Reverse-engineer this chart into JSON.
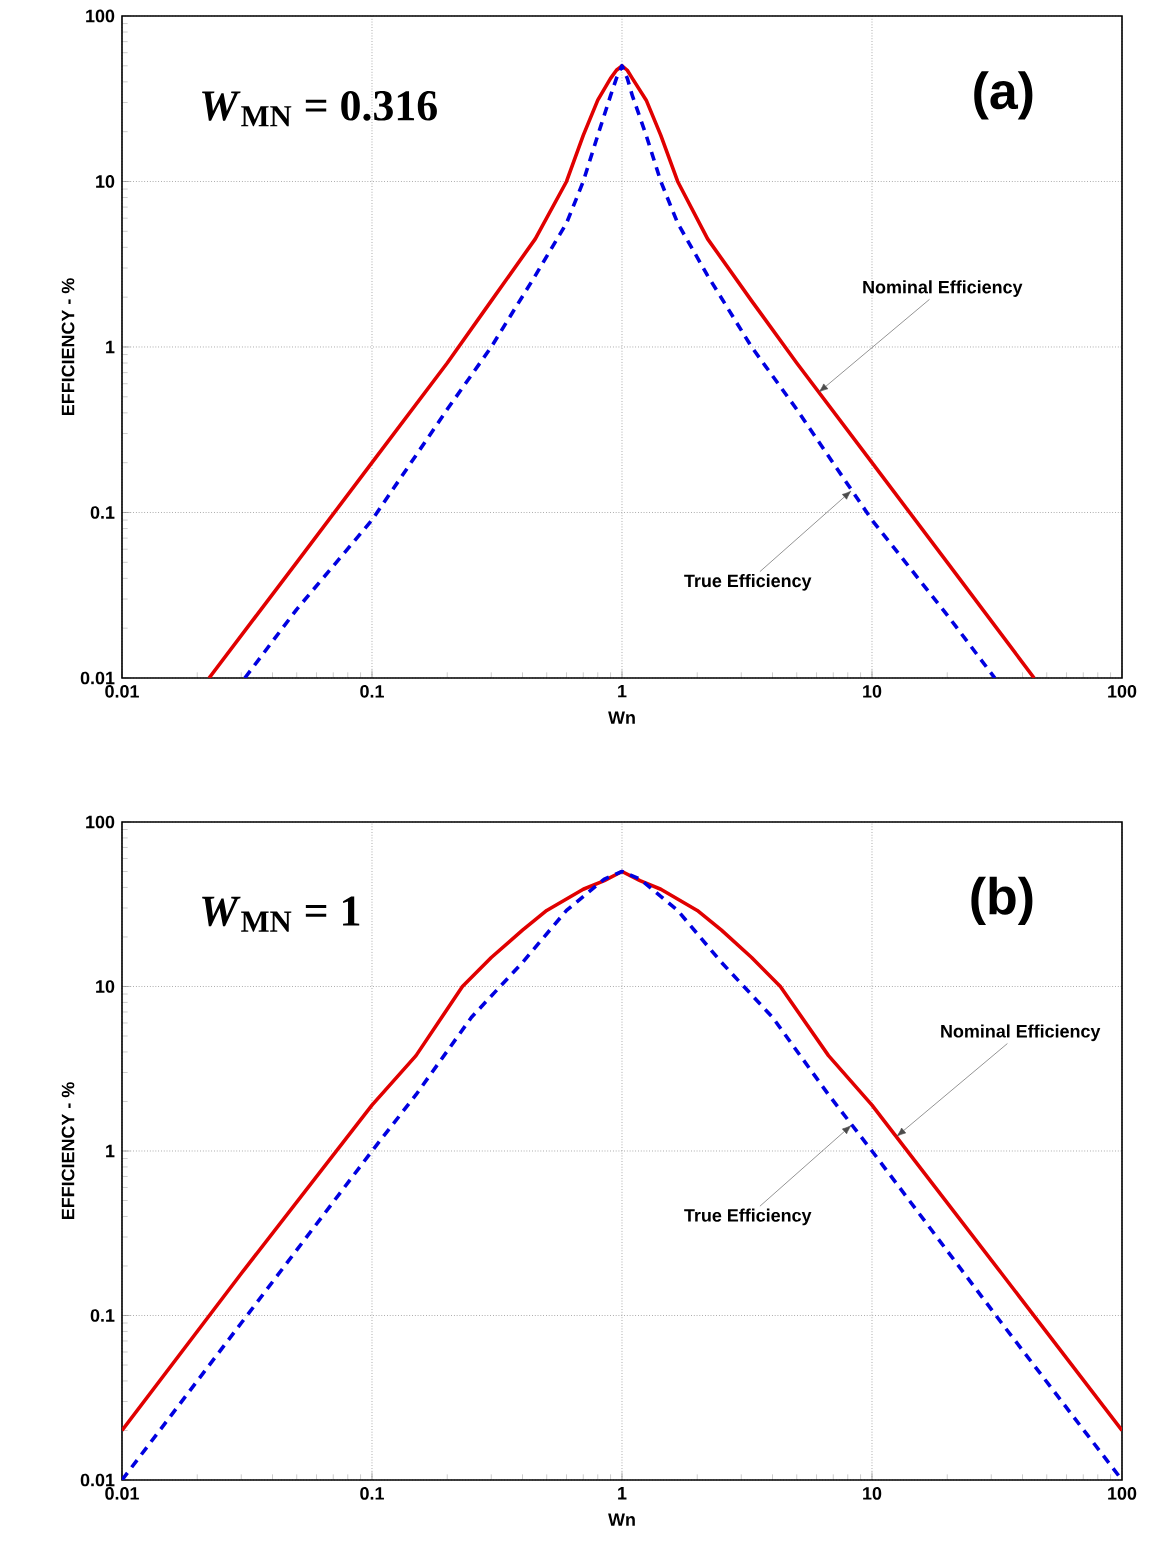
{
  "chart_data": [
    {
      "type": "line",
      "xlabel": "Wn",
      "ylabel": "EFFICIENCY - %",
      "log": "xy",
      "grid": true,
      "xlim": [
        0.01,
        100
      ],
      "ylim": [
        0.01,
        100
      ],
      "xticks": [
        0.01,
        0.1,
        1,
        10,
        100
      ],
      "yticks": [
        0.01,
        0.1,
        1,
        10,
        100
      ],
      "series": [
        {
          "color": "#e00000",
          "line_style": "solid",
          "x": [
            0.0223,
            0.05,
            0.1,
            0.2,
            0.3,
            0.45,
            0.6,
            0.7,
            0.8,
            0.9,
            0.95,
            1,
            1.05,
            1.1,
            1.25,
            1.43,
            1.67,
            2.2,
            3.3,
            5,
            10,
            20,
            44.5
          ],
          "values": [
            0.01,
            0.05,
            0.2,
            0.8,
            1.9,
            4.5,
            10,
            19,
            31,
            42,
            47,
            50,
            47,
            42,
            31,
            19,
            10,
            4.5,
            1.9,
            0.8,
            0.2,
            0.05,
            0.01
          ]
        },
        {
          "color": "#0000e0",
          "line_style": "dashed",
          "x": [
            0.031,
            0.05,
            0.1,
            0.2,
            0.3,
            0.45,
            0.6,
            0.7,
            0.8,
            0.9,
            0.95,
            1,
            1.05,
            1.1,
            1.25,
            1.43,
            1.67,
            2.2,
            3.3,
            5,
            10,
            20,
            31
          ],
          "values": [
            0.01,
            0.026,
            0.09,
            0.42,
            1.0,
            2.7,
            5.6,
            10,
            19,
            33,
            42,
            50,
            42,
            33,
            19,
            10,
            5.6,
            2.7,
            1.0,
            0.42,
            0.09,
            0.024,
            0.01
          ]
        }
      ],
      "annotations": [
        "*W*$_{MN}$ = 0.316",
        "(a)",
        {
          "text": "Nominal Efficiency",
          "x": 6.1,
          "y": 0.53
        },
        {
          "text": "True Efficiency",
          "x": 8.3,
          "y": 0.136
        }
      ]
    },
    {
      "type": "line",
      "xlabel": "Wn",
      "ylabel": "EFFICIENCY - %",
      "log": "xy",
      "grid": true,
      "xlim": [
        0.01,
        100
      ],
      "ylim": [
        0.01,
        100
      ],
      "xticks": [
        0.01,
        0.1,
        1,
        10,
        100
      ],
      "yticks": [
        0.01,
        0.1,
        1,
        10,
        100
      ],
      "series": [
        {
          "color": "#e00000",
          "line_style": "solid",
          "x": [
            0.01,
            0.03,
            0.1,
            0.15,
            0.23,
            0.3,
            0.4,
            0.5,
            0.7,
            0.85,
            1,
            1.18,
            1.43,
            2,
            2.5,
            3.3,
            4.3,
            6.7,
            10,
            33,
            100
          ],
          "values": [
            0.02,
            0.18,
            1.9,
            3.8,
            10,
            15,
            22,
            29,
            39,
            44,
            50,
            44,
            39,
            29,
            22,
            15,
            10,
            3.8,
            1.9,
            0.18,
            0.02
          ]
        },
        {
          "color": "#0000e0",
          "line_style": "dashed",
          "x": [
            0.01,
            0.03,
            0.1,
            0.15,
            0.25,
            0.4,
            0.6,
            0.85,
            1,
            1.18,
            1.67,
            2.5,
            4,
            6.7,
            10,
            33,
            100
          ],
          "values": [
            0.01,
            0.09,
            1,
            2.2,
            6.5,
            14,
            29,
            45,
            50,
            45,
            29,
            14,
            6.5,
            2.2,
            1,
            0.09,
            0.01
          ]
        }
      ],
      "annotations": [
        "*W*$_{MN}$ = 1",
        "(b)",
        {
          "text": "Nominal Efficiency",
          "x": 12.5,
          "y": 1.22
        },
        {
          "text": "True Efficiency",
          "x": 8.3,
          "y": 1.44
        }
      ]
    }
  ]
}
